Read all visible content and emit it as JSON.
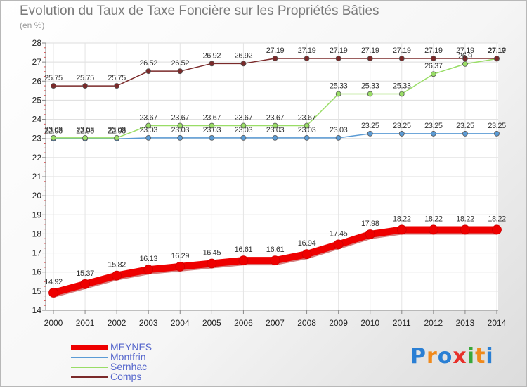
{
  "title": "Evolution du Taux de Taxe Foncière sur les Propriétés Bâties",
  "subtitle": "(en %)",
  "logo": {
    "letters": [
      "P",
      "r",
      "o",
      "x",
      "i",
      "t",
      "i"
    ],
    "colors": [
      "#2a7fd4",
      "#f08a1c",
      "#2a7fd4",
      "#e8302a",
      "#39a83a",
      "#f08a1c",
      "#2a7fd4"
    ]
  },
  "chart_data": {
    "type": "line",
    "x": [
      "2000",
      "2001",
      "2002",
      "2003",
      "2004",
      "2005",
      "2006",
      "2007",
      "2008",
      "2009",
      "2010",
      "2011",
      "2012",
      "2013",
      "2014"
    ],
    "ylim": [
      14,
      28
    ],
    "yticks": [
      "14",
      "15",
      "16",
      "17",
      "18",
      "19",
      "20",
      "21",
      "22",
      "23",
      "24",
      "25",
      "26",
      "27",
      "28"
    ],
    "grid": true,
    "legend_position": "bottom-left",
    "series": [
      {
        "name": "MEYNES",
        "color": "#ee0000",
        "width": 10,
        "values": [
          14.92,
          15.37,
          15.82,
          16.13,
          16.29,
          16.45,
          16.61,
          16.61,
          16.94,
          17.45,
          17.98,
          18.22,
          18.22,
          18.22,
          18.22
        ],
        "labels": [
          "14.92",
          "15.37",
          "15.82",
          "16.13",
          "16.29",
          "16.45",
          "16.61",
          "16.61",
          "16.94",
          "17.45",
          "17.98",
          "18.22",
          "18.22",
          "18.22",
          "18.22"
        ]
      },
      {
        "name": "Montfrin",
        "color": "#5b9bd5",
        "width": 1.5,
        "values": [
          22.98,
          22.98,
          22.98,
          23.03,
          23.03,
          23.03,
          23.03,
          23.03,
          23.03,
          23.03,
          23.25,
          23.25,
          23.25,
          23.25,
          23.25
        ],
        "labels": [
          "22.98",
          "22.98",
          "22.98",
          "23.03",
          "23.03",
          "23.03",
          "23.03",
          "23.03",
          "23.03",
          "23.03",
          "23.25",
          "23.25",
          "23.25",
          "23.25",
          "23.25"
        ]
      },
      {
        "name": "Sernhac",
        "color": "#99dd66",
        "width": 1.5,
        "values": [
          23.03,
          23.03,
          23.03,
          23.67,
          23.67,
          23.67,
          23.67,
          23.67,
          23.67,
          25.33,
          25.33,
          25.33,
          26.37,
          26.9,
          27.17
        ],
        "labels": [
          "23.03",
          "23.03",
          "23.03",
          "23.67",
          "23.67",
          "23.67",
          "23.67",
          "23.67",
          "23.67",
          "25.33",
          "25.33",
          "25.33",
          "26.37",
          "26.9",
          "27.17"
        ]
      },
      {
        "name": "Comps",
        "color": "#7b2a2a",
        "width": 1.5,
        "values": [
          25.75,
          25.75,
          25.75,
          26.52,
          26.52,
          26.92,
          26.92,
          27.19,
          27.19,
          27.19,
          27.19,
          27.19,
          27.19,
          27.19,
          27.19
        ],
        "labels": [
          "25.75",
          "25.75",
          "25.75",
          "26.52",
          "26.52",
          "26.92",
          "26.92",
          "27.19",
          "27.19",
          "27.19",
          "27.19",
          "27.19",
          "27.19",
          "27.19",
          "27.19"
        ]
      }
    ]
  }
}
